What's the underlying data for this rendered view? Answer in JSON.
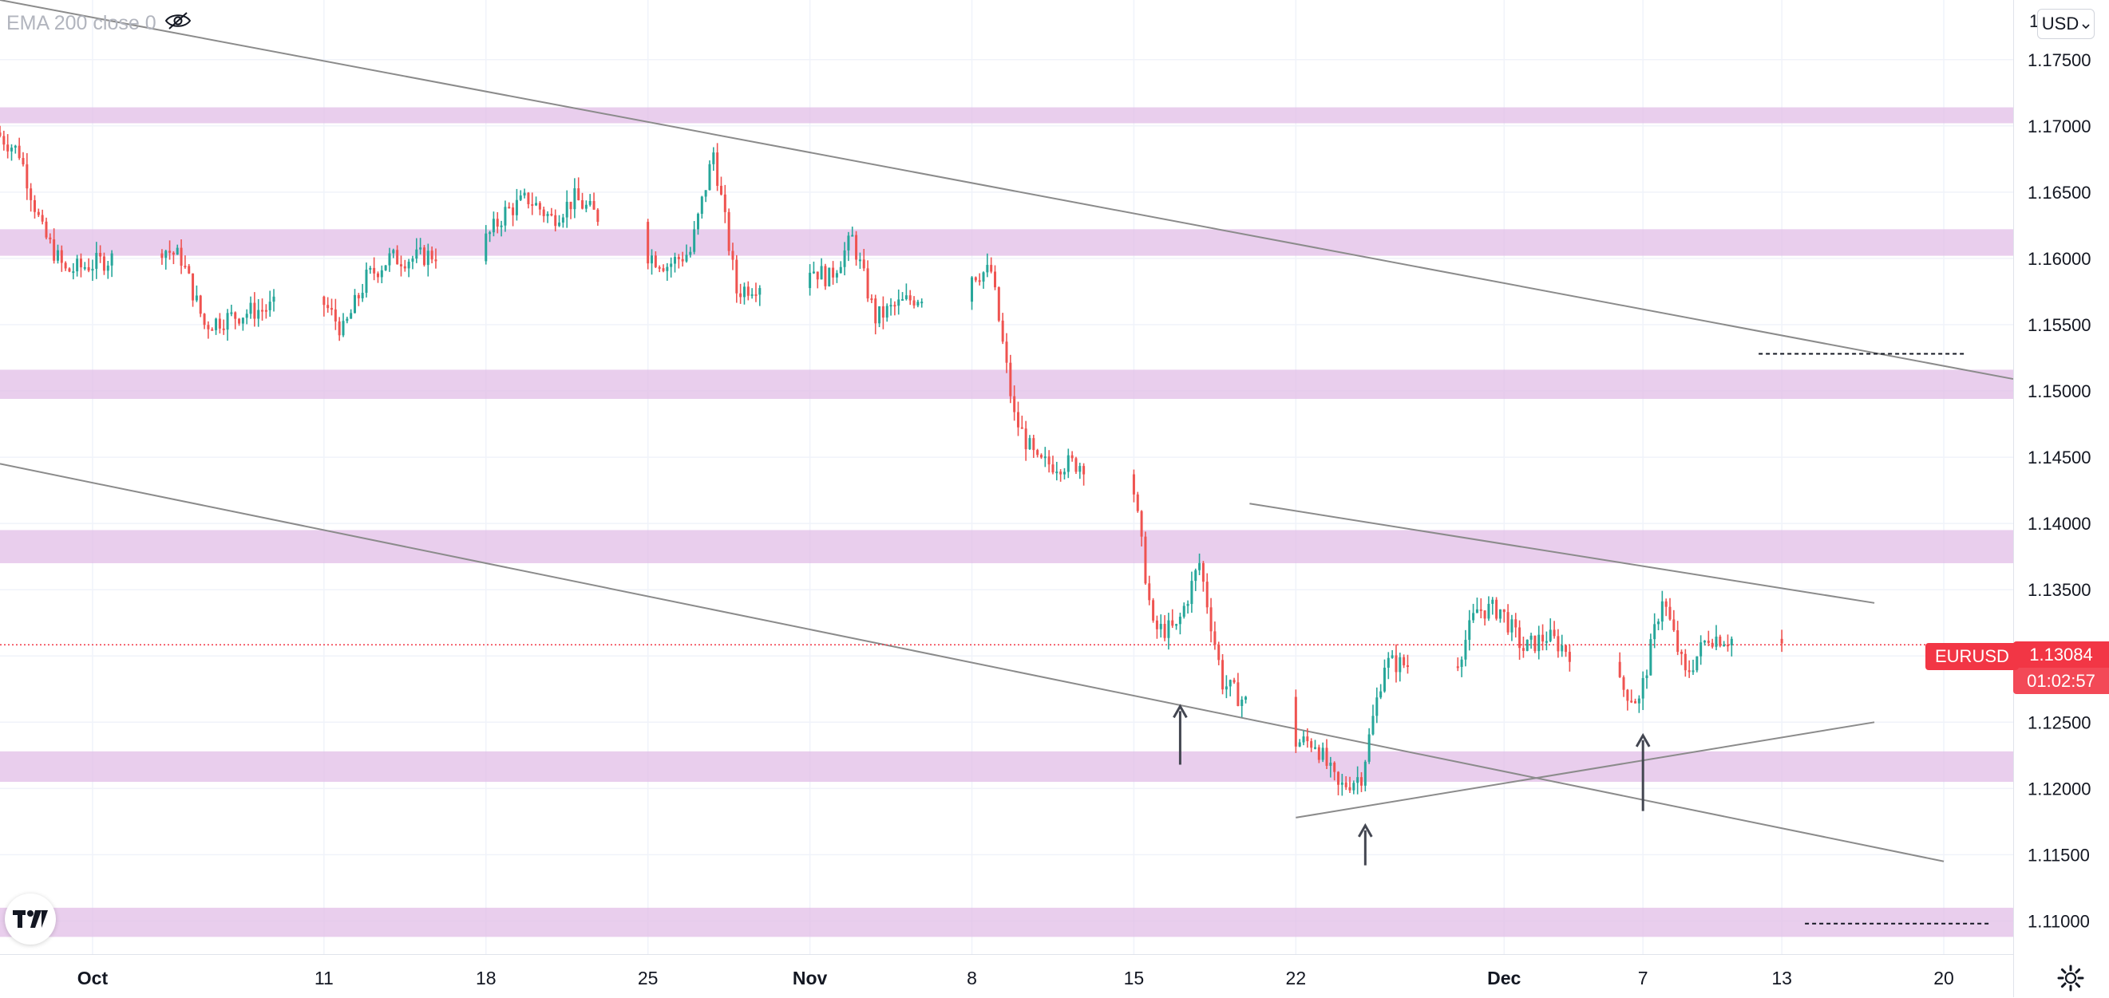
{
  "indicator": {
    "label": "EMA 200 close 0",
    "icon": "eye-crossed-icon"
  },
  "currency": {
    "selected": "USD"
  },
  "price_axis_cap": "1",
  "symbol_label": "EURUSD",
  "last_price": "1.13084",
  "countdown": "01:02:57",
  "colors": {
    "up": "#26a69a",
    "down": "#ef5350",
    "zone": "#e1bee7",
    "line": "#8b8b8b",
    "label": "#f23645"
  },
  "chart_data": {
    "type": "candlestick",
    "symbol": "EURUSD",
    "y_ticks": [
      "1.17500",
      "1.17000",
      "1.16500",
      "1.16000",
      "1.15500",
      "1.15000",
      "1.14500",
      "1.14000",
      "1.13500",
      "1.13000",
      "1.12500",
      "1.12000",
      "1.11500",
      "1.11000"
    ],
    "y_tick_values": [
      1.175,
      1.17,
      1.165,
      1.16,
      1.155,
      1.15,
      1.145,
      1.14,
      1.135,
      1.13,
      1.125,
      1.12,
      1.115,
      1.11
    ],
    "x_ticks": [
      {
        "label": "Oct",
        "date": "2021-10-01"
      },
      {
        "label": "11",
        "date": "2021-10-11"
      },
      {
        "label": "18",
        "date": "2021-10-18"
      },
      {
        "label": "25",
        "date": "2021-10-25"
      },
      {
        "label": "Nov",
        "date": "2021-11-01"
      },
      {
        "label": "8",
        "date": "2021-11-08"
      },
      {
        "label": "15",
        "date": "2021-11-15"
      },
      {
        "label": "22",
        "date": "2021-11-22"
      },
      {
        "label": "Dec",
        "date": "2021-12-01"
      },
      {
        "label": "7",
        "date": "2021-12-07"
      },
      {
        "label": "13",
        "date": "2021-12-13"
      },
      {
        "label": "20",
        "date": "2021-12-20"
      }
    ],
    "x_range": [
      "2021-09-27",
      "2021-12-23"
    ],
    "ylim": [
      1.1075,
      1.1795
    ],
    "last_price": 1.13084,
    "grid": true,
    "price_path": [
      [
        "2021-09-27",
        1.1695
      ],
      [
        "2021-09-28",
        1.168
      ],
      [
        "2021-09-29",
        1.162
      ],
      [
        "2021-09-30",
        1.159
      ],
      [
        "2021-10-01",
        1.1595
      ],
      [
        "2021-10-04",
        1.161
      ],
      [
        "2021-10-05",
        1.16
      ],
      [
        "2021-10-06",
        1.155
      ],
      [
        "2021-10-07",
        1.1555
      ],
      [
        "2021-10-08",
        1.156
      ],
      [
        "2021-10-11",
        1.157
      ],
      [
        "2021-10-12",
        1.1545
      ],
      [
        "2021-10-13",
        1.1585
      ],
      [
        "2021-10-14",
        1.16
      ],
      [
        "2021-10-15",
        1.16
      ],
      [
        "2021-10-18",
        1.161
      ],
      [
        "2021-10-19",
        1.1635
      ],
      [
        "2021-10-20",
        1.1645
      ],
      [
        "2021-10-21",
        1.163
      ],
      [
        "2021-10-22",
        1.1645
      ],
      [
        "2021-10-25",
        1.1605
      ],
      [
        "2021-10-26",
        1.1595
      ],
      [
        "2021-10-27",
        1.1605
      ],
      [
        "2021-10-28",
        1.168
      ],
      [
        "2021-10-29",
        1.1575
      ],
      [
        "2021-11-01",
        1.1595
      ],
      [
        "2021-11-02",
        1.1585
      ],
      [
        "2021-11-03",
        1.1615
      ],
      [
        "2021-11-04",
        1.1555
      ],
      [
        "2021-11-05",
        1.1565
      ],
      [
        "2021-11-08",
        1.1588
      ],
      [
        "2021-11-09",
        1.159
      ],
      [
        "2021-11-10",
        1.148
      ],
      [
        "2021-11-11",
        1.1445
      ],
      [
        "2021-11-12",
        1.1445
      ],
      [
        "2021-11-15",
        1.1445
      ],
      [
        "2021-11-16",
        1.132
      ],
      [
        "2021-11-17",
        1.132
      ],
      [
        "2021-11-18",
        1.137
      ],
      [
        "2021-11-19",
        1.128
      ],
      [
        "2021-11-22",
        1.1235
      ],
      [
        "2021-11-23",
        1.1235
      ],
      [
        "2021-11-24",
        1.12
      ],
      [
        "2021-11-25",
        1.121
      ],
      [
        "2021-11-26",
        1.1295
      ],
      [
        "2021-11-29",
        1.129
      ],
      [
        "2021-11-30",
        1.1335
      ],
      [
        "2021-12-01",
        1.1335
      ],
      [
        "2021-12-02",
        1.1305
      ],
      [
        "2021-12-03",
        1.1315
      ],
      [
        "2021-12-06",
        1.128
      ],
      [
        "2021-12-07",
        1.1265
      ],
      [
        "2021-12-08",
        1.1345
      ],
      [
        "2021-12-09",
        1.1285
      ],
      [
        "2021-12-10",
        1.1315
      ],
      [
        "2021-12-13",
        1.1308
      ]
    ],
    "zones": [
      [
        1.1702,
        1.1714
      ],
      [
        1.1602,
        1.1622
      ],
      [
        1.1494,
        1.1516
      ],
      [
        1.137,
        1.1395
      ],
      [
        1.1205,
        1.1228
      ],
      [
        1.1088,
        1.111
      ]
    ],
    "trendlines": [
      {
        "from": [
          "2021-09-27",
          1.1795
        ],
        "to": [
          "2021-12-23",
          1.1509
        ]
      },
      {
        "from": [
          "2021-09-27",
          1.1445
        ],
        "to": [
          "2021-12-20",
          1.1145
        ]
      },
      {
        "from": [
          "2021-11-20",
          1.1415
        ],
        "to": [
          "2021-12-17",
          1.134
        ]
      },
      {
        "from": [
          "2021-11-22",
          1.1178
        ],
        "to": [
          "2021-12-17",
          1.125
        ]
      }
    ],
    "dashed_levels": [
      {
        "from": "2021-12-12",
        "to": "2021-12-21",
        "value": 1.1528
      },
      {
        "from": "2021-12-14",
        "to": "2021-12-22",
        "value": 1.1098
      }
    ],
    "arrows": [
      {
        "date": "2021-11-17",
        "tip": 1.1262,
        "base": 1.1218
      },
      {
        "date": "2021-11-25",
        "tip": 1.1172,
        "base": 1.1142
      },
      {
        "date": "2021-12-07",
        "tip": 1.124,
        "base": 1.1183
      }
    ]
  }
}
